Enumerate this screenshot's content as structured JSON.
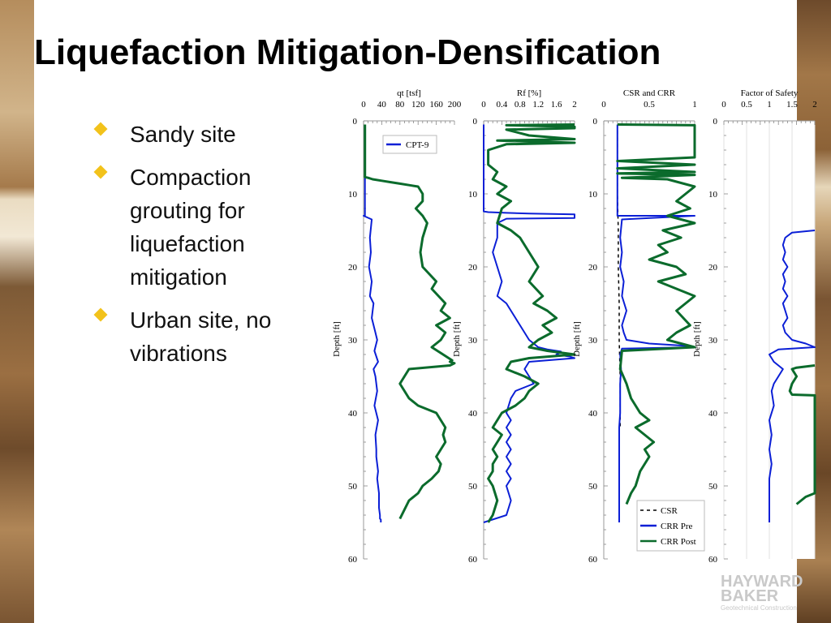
{
  "slide": {
    "title": "Liquefaction Mitigation-Densification",
    "bullets": [
      {
        "text": "Sandy site"
      },
      {
        "text": "Compaction grouting for liquefaction mitigation"
      },
      {
        "text": "Urban site, no vibrations"
      }
    ],
    "logo": {
      "line1": "HAYWARD",
      "line2": "BAKER",
      "line3": "Geotechnical Construction"
    }
  },
  "colors": {
    "blue": "#0b1fd6",
    "green": "#0b6b2c",
    "bullet": "#f2c21b"
  },
  "chart_data": [
    {
      "type": "line",
      "title": "qt [tsf]",
      "ylabel": "Depth [ft]",
      "xlim": [
        0,
        200
      ],
      "ylim": [
        60,
        0
      ],
      "xticks": [
        "0",
        "40",
        "80",
        "120",
        "160",
        "200"
      ],
      "yticks": [
        "0",
        "10",
        "20",
        "30",
        "40",
        "50",
        "60"
      ],
      "legend": {
        "placement": "top-right",
        "entries": [
          "CPT-9"
        ]
      },
      "series": [
        {
          "name": "CPT-9",
          "color": "blue",
          "x": [
            3,
            3,
            3,
            3,
            3,
            3,
            3,
            3,
            3,
            3,
            3,
            3,
            3,
            2,
            2,
            0,
            18,
            14,
            16,
            12,
            18,
            14,
            22,
            18,
            26,
            30,
            24,
            32,
            22,
            26,
            30,
            24,
            32,
            26,
            28,
            28,
            30,
            32,
            30,
            32,
            34,
            34,
            34,
            36,
            36,
            36,
            38,
            38,
            38,
            38
          ],
          "y": [
            0.5,
            2,
            4,
            6,
            8,
            10,
            12,
            12.6,
            13,
            12.8,
            12.9,
            12.95,
            13,
            13,
            13,
            13,
            13.5,
            16,
            18,
            20,
            22,
            24,
            25,
            27,
            29,
            30,
            31.5,
            33,
            34,
            35,
            37,
            39,
            41,
            43,
            45,
            46,
            47,
            48,
            49,
            50,
            51,
            52,
            53,
            54,
            54.3,
            54.5,
            54.6,
            54.7,
            54.8,
            55
          ]
        },
        {
          "color": "green",
          "x": [
            3,
            3,
            3,
            3,
            3,
            3,
            10,
            20,
            40,
            60,
            80,
            100,
            120,
            130,
            130,
            115,
            130,
            140,
            130,
            125,
            130,
            160,
            150,
            165,
            180,
            170,
            190,
            160,
            180,
            170,
            150,
            175,
            195,
            190,
            200,
            190,
            100,
            80,
            100,
            120,
            160,
            170,
            180,
            175,
            180,
            170,
            160,
            170,
            165,
            150,
            130,
            120,
            100,
            80
          ],
          "y": [
            0.5,
            2,
            4,
            6,
            7.5,
            7.7,
            7.8,
            8,
            8.2,
            8.4,
            8.6,
            8.8,
            9,
            10,
            11,
            12,
            13,
            14,
            16,
            18,
            20,
            22,
            23,
            24,
            25,
            26,
            27,
            28,
            29,
            30,
            31,
            32,
            32.8,
            33,
            33.2,
            33.5,
            34,
            36,
            38,
            39,
            40,
            41,
            42,
            43,
            44,
            45,
            46,
            47,
            48,
            49,
            50,
            51,
            52,
            54.5
          ]
        }
      ]
    },
    {
      "type": "line",
      "title": "Rf [%]",
      "ylabel": "Depth [ft]",
      "xlim": [
        0,
        2
      ],
      "ylim": [
        60,
        0
      ],
      "xticks": [
        "0",
        "0.4",
        "0.8",
        "1.2",
        "1.6",
        "2"
      ],
      "yticks": [
        "0",
        "10",
        "20",
        "30",
        "40",
        "50",
        "60"
      ],
      "series": [
        {
          "color": "blue",
          "x": [
            0,
            0,
            0,
            0,
            0,
            0,
            0,
            0,
            0,
            0,
            0,
            0.1,
            0.5,
            1,
            2,
            2,
            0.5,
            0.3,
            0.3,
            0.2,
            0.3,
            0.4,
            0.3,
            0.5,
            0.6,
            0.7,
            0.8,
            0.9,
            1,
            1.2,
            1.4,
            1.6,
            1.7,
            1.6,
            1.9,
            2,
            1,
            0.9,
            1.1,
            0.7,
            0.6,
            0.5,
            0.6,
            0.5,
            0.6,
            0.5,
            0.6,
            0.5,
            0.6,
            0.5,
            0.6,
            0.5,
            0.6,
            0.5,
            0
          ],
          "y": [
            0.5,
            2,
            4,
            6,
            8,
            10,
            11,
            11.8,
            12,
            12.2,
            12.4,
            12.5,
            12.6,
            12.7,
            12.8,
            13.3,
            13.4,
            14,
            16,
            18,
            20,
            22,
            24,
            25,
            26,
            27,
            28,
            29,
            30,
            31,
            31.3,
            31.5,
            31.6,
            32,
            32.3,
            32.5,
            33,
            34,
            36,
            37,
            38,
            40,
            41,
            42,
            43,
            44,
            45,
            46,
            47,
            48,
            49,
            50,
            52,
            54,
            55
          ]
        },
        {
          "color": "green",
          "x": [
            2,
            0.5,
            2,
            2,
            0.5,
            1,
            2,
            0.3,
            2,
            0.5,
            0.1,
            0.1,
            0.3,
            0.2,
            0.5,
            0.3,
            0.6,
            0.4,
            0.3,
            0.6,
            0.8,
            1,
            1.2,
            1,
            1.3,
            1.1,
            1.4,
            1.6,
            1.3,
            1.5,
            1.2,
            1,
            1.4,
            2,
            1,
            0.6,
            0.5,
            0.9,
            1.2,
            1,
            0.9,
            0.7,
            0.4,
            0.3,
            0.2,
            0.4,
            0.3,
            0.2,
            0.3,
            0.2,
            0.2,
            0.1,
            0.2,
            0.3,
            0.2,
            0.1
          ],
          "y": [
            0.5,
            0.6,
            0.8,
            1,
            1.2,
            2,
            2.5,
            2.7,
            3,
            3.2,
            4,
            6,
            7,
            8,
            9,
            10,
            11,
            12,
            14,
            15,
            16,
            18,
            20,
            22,
            24,
            25,
            26,
            27,
            28,
            29,
            30,
            31,
            31.5,
            32,
            32.5,
            33,
            34,
            35,
            36,
            37,
            38,
            39,
            40,
            41,
            42,
            43,
            44,
            45,
            46,
            47,
            48,
            49,
            50,
            52,
            54,
            55
          ]
        }
      ]
    },
    {
      "type": "line",
      "title": "CSR and CRR",
      "ylabel": "Depth [ft]",
      "xlim": [
        0,
        1
      ],
      "ylim": [
        60,
        0
      ],
      "xticks": [
        "0",
        "0.5",
        "1"
      ],
      "yticks": [
        "0",
        "10",
        "20",
        "30",
        "40",
        "50",
        "60"
      ],
      "legend": {
        "placement": "bottom-right",
        "entries": [
          "CSR",
          "CRR Pre",
          "CRR Post"
        ]
      },
      "series": [
        {
          "name": "CSR",
          "color": "black",
          "dashed": true,
          "x": [
            0.15,
            0.15,
            0.15,
            0.16,
            0.16,
            0.17,
            0.17,
            0.18,
            0.18,
            0.18
          ],
          "y": [
            0.5,
            5,
            10,
            15,
            20,
            25,
            30,
            35,
            40,
            42
          ]
        },
        {
          "name": "CRR Pre",
          "color": "blue",
          "x": [
            0.15,
            0.15,
            0.15,
            0.15,
            0.15,
            0.15,
            0.15,
            0.5,
            1,
            0.2,
            0.18,
            0.2,
            0.18,
            0.22,
            0.2,
            0.25,
            0.2,
            0.22,
            0.25,
            0.5,
            0.9,
            1,
            0.2,
            0.18,
            0.19,
            0.18,
            0.18,
            0.18,
            0.17,
            0.17,
            0.17,
            0.17,
            0.17,
            0.17
          ],
          "y": [
            0.5,
            3,
            6,
            9,
            12,
            12.5,
            13,
            13,
            13,
            13.5,
            16,
            18,
            20,
            22,
            24,
            26,
            28,
            29,
            30,
            30.5,
            30.8,
            31,
            31.2,
            32,
            34,
            36,
            38,
            40,
            42,
            44,
            46,
            48,
            50,
            55
          ]
        },
        {
          "name": "CRR Post",
          "color": "green",
          "x": [
            0.15,
            1,
            1,
            0.15,
            1,
            0.15,
            1,
            0.15,
            1,
            0.2,
            0.7,
            1,
            0.9,
            0.8,
            0.95,
            0.7,
            1,
            0.65,
            0.85,
            0.6,
            0.7,
            0.5,
            0.8,
            0.9,
            0.6,
            1,
            0.9,
            0.8,
            0.95,
            0.8,
            0.7,
            1,
            0.2,
            0.18,
            0.25,
            0.3,
            0.4,
            0.5,
            0.35,
            0.45,
            0.55,
            0.45,
            0.5,
            0.4,
            0.35,
            0.3,
            0.25
          ],
          "y": [
            0.5,
            0.6,
            5,
            5.5,
            6,
            6.5,
            7,
            7.2,
            7.4,
            7.8,
            8,
            9,
            10,
            11,
            12,
            13,
            14,
            15,
            16,
            17,
            18,
            19,
            20,
            21,
            22,
            24,
            25,
            26,
            28,
            29,
            30,
            31,
            31.5,
            34,
            36,
            38,
            40,
            41,
            42,
            43,
            44,
            45,
            46,
            48,
            50,
            51,
            52.5
          ]
        }
      ]
    },
    {
      "type": "line",
      "title": "Factor of Safety",
      "ylabel": "Depth [ft]",
      "xlim": [
        0,
        2
      ],
      "ylim": [
        60,
        0
      ],
      "xticks": [
        "0",
        "0.5",
        "1",
        "1.5",
        "2"
      ],
      "yticks": [
        "0",
        "10",
        "20",
        "30",
        "40",
        "50",
        "60"
      ],
      "series": [
        {
          "color": "blue",
          "x": [
            2,
            1.5,
            1.35,
            1.3,
            1.35,
            1.3,
            1.4,
            1.3,
            1.35,
            1.3,
            1.4,
            1.3,
            1.35,
            1.4,
            1.3,
            1.35,
            1.5,
            1.8,
            2,
            1.2,
            1,
            1.1,
            1.3,
            1.2,
            1.1,
            1.05,
            1.1,
            1,
            1.05,
            1,
            1.05,
            1,
            1,
            1,
            1
          ],
          "y": [
            15,
            15.3,
            16,
            17,
            18,
            19,
            20,
            21,
            22,
            23,
            24,
            25,
            26,
            27,
            28,
            29,
            30,
            30.5,
            31,
            31.3,
            32,
            33,
            34,
            35,
            36,
            37,
            39,
            41,
            43,
            45,
            47,
            49,
            51,
            53,
            55
          ]
        },
        {
          "color": "green",
          "x": [
            2,
            1.6,
            1.5,
            1.6,
            1.5,
            1.45,
            1.5,
            2,
            2,
            2,
            2,
            2,
            2,
            1.8,
            1.6
          ],
          "y": [
            33.5,
            33.8,
            34,
            35,
            36,
            37,
            37.5,
            37.6,
            40,
            44,
            48,
            50,
            51,
            51.5,
            52.5
          ]
        }
      ]
    }
  ]
}
